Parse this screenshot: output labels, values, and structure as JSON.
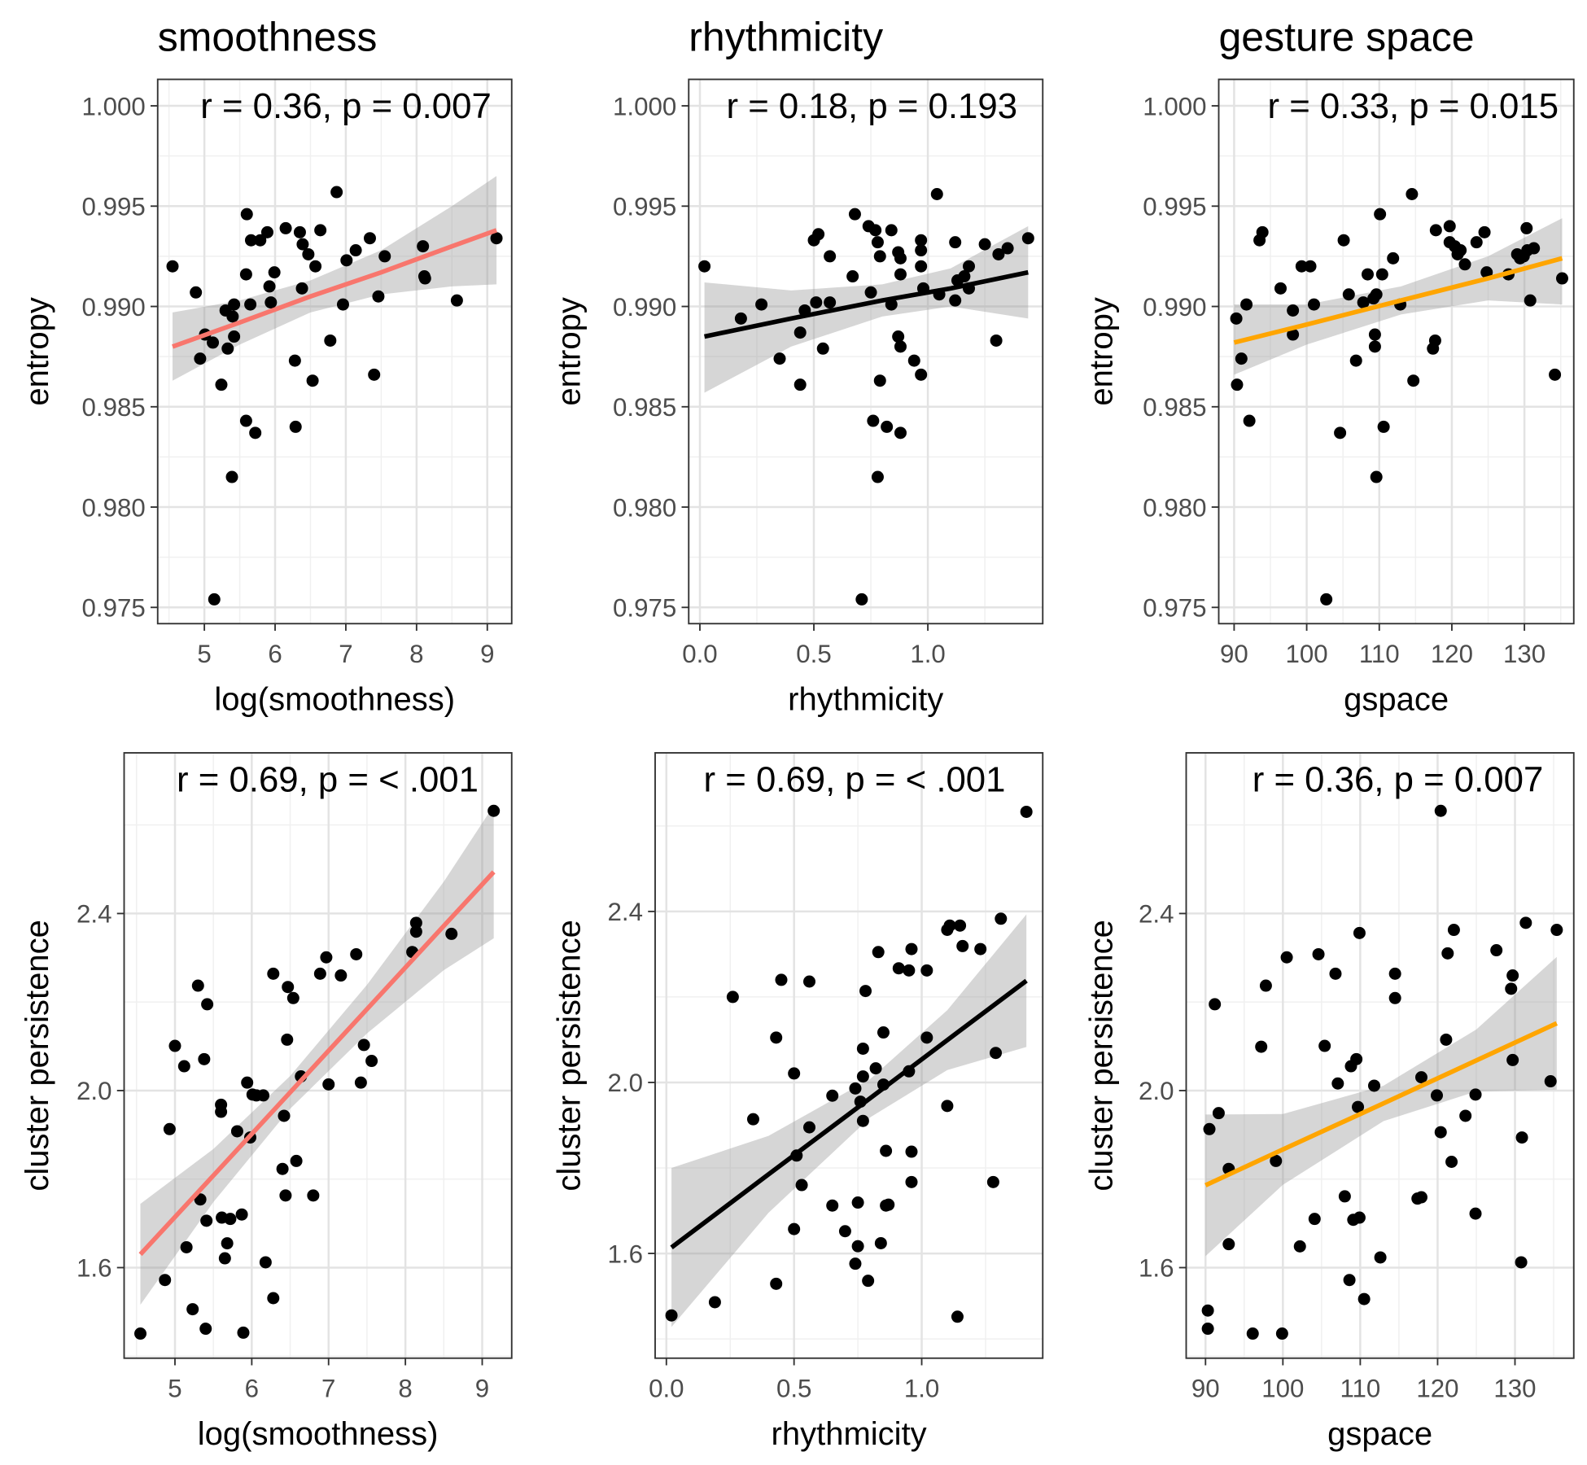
{
  "chart_data": [
    {
      "type": "scatter",
      "title": "smoothness",
      "xlabel": "log(smoothness)",
      "ylabel": "entropy",
      "annotation": "r = 0.36, p = 0.007",
      "grid": true,
      "point_color": "#000000",
      "x": [
        4.55,
        4.88,
        4.94,
        5.01,
        5.12,
        5.14,
        5.24,
        5.3,
        5.33,
        5.4,
        5.42,
        5.39,
        5.42,
        5.59,
        5.59,
        5.6,
        5.65,
        5.66,
        5.72,
        5.79,
        5.89,
        5.92,
        5.94,
        5.99,
        6.15,
        6.28,
        6.29,
        6.35,
        6.38,
        6.39,
        6.47,
        6.53,
        6.57,
        6.64,
        6.78,
        6.87,
        6.96,
        7.01,
        7.14,
        7.34,
        7.4,
        7.46,
        7.55,
        8.09,
        8.11,
        8.12,
        8.57,
        9.13
      ],
      "y": [
        0.992,
        0.9907,
        0.9874,
        0.9886,
        0.9882,
        0.9754,
        0.9861,
        0.9898,
        0.9879,
        0.9895,
        0.9901,
        0.9815,
        0.9885,
        0.9843,
        0.9916,
        0.9946,
        0.9901,
        0.9933,
        0.9837,
        0.9933,
        0.9937,
        0.991,
        0.9902,
        0.9917,
        0.9939,
        0.9873,
        0.984,
        0.9937,
        0.9909,
        0.9931,
        0.9926,
        0.9863,
        0.992,
        0.9938,
        0.9883,
        0.9957,
        0.9901,
        0.9923,
        0.9928,
        0.9934,
        0.9866,
        0.9905,
        0.9925,
        0.993,
        0.9915,
        0.9914,
        0.9903,
        0.9934
      ],
      "fit": {
        "color": "#F8766D",
        "x": [
          4.55,
          5.5,
          6.5,
          7.5,
          8.5,
          9.13
        ],
        "y": [
          0.988,
          0.9892,
          0.9905,
          0.9917,
          0.993,
          0.9938
        ],
        "lower": [
          0.9863,
          0.9881,
          0.9897,
          0.9906,
          0.991,
          0.9911
        ],
        "upper": [
          0.9897,
          0.9903,
          0.9913,
          0.9928,
          0.995,
          0.9965
        ]
      },
      "xlim": [
        4.34,
        9.345
      ],
      "ylim": [
        0.97419,
        1.00132
      ],
      "xticks": [
        5,
        6,
        7,
        8,
        9
      ],
      "yticks": [
        {
          "value": 1,
          "label": "1.000"
        },
        0.995,
        {
          "value": 0.99,
          "label": "0.990"
        },
        0.985,
        {
          "value": 0.98,
          "label": "0.980"
        },
        0.975
      ]
    },
    {
      "type": "scatter",
      "title": "rhythmicity",
      "xlabel": "rhythmicity",
      "ylabel": "entropy",
      "annotation": "r = 0.18, p = 0.193",
      "grid": true,
      "point_color": "#000000",
      "x": [
        0.02,
        0.18,
        0.27,
        0.35,
        0.44,
        0.44,
        0.46,
        0.5,
        0.51,
        0.52,
        0.54,
        0.57,
        0.57,
        0.67,
        0.68,
        0.71,
        0.74,
        0.75,
        0.76,
        0.77,
        0.78,
        0.79,
        0.79,
        0.78,
        0.82,
        0.84,
        0.84,
        0.88,
        0.87,
        0.87,
        0.88,
        0.88,
        0.88,
        0.94,
        0.97,
        0.97,
        0.97,
        0.97,
        0.98,
        1.04,
        1.05,
        1.12,
        1.12,
        1.13,
        1.16,
        1.18,
        1.18,
        1.25,
        1.3,
        1.31,
        1.35,
        1.44
      ],
      "y": [
        0.992,
        0.9894,
        0.9901,
        0.9874,
        0.9887,
        0.9861,
        0.9898,
        0.9933,
        0.9902,
        0.9936,
        0.9879,
        0.9925,
        0.9902,
        0.9915,
        0.9946,
        0.9754,
        0.994,
        0.9907,
        0.9843,
        0.9938,
        0.9932,
        0.9925,
        0.9863,
        0.9815,
        0.984,
        0.9938,
        0.9901,
        0.9916,
        0.9885,
        0.9927,
        0.988,
        0.9837,
        0.9924,
        0.9873,
        0.9866,
        0.992,
        0.9933,
        0.9928,
        0.9909,
        0.9956,
        0.9906,
        0.9903,
        0.9932,
        0.9913,
        0.9915,
        0.992,
        0.9909,
        0.9931,
        0.9883,
        0.9926,
        0.9929,
        0.9934
      ],
      "fit": {
        "color": "#000000",
        "x": [
          0.02,
          0.4,
          0.8,
          1.1,
          1.44
        ],
        "y": [
          0.9885,
          0.9894,
          0.9903,
          0.9909,
          0.9917
        ],
        "lower": [
          0.9857,
          0.988,
          0.9895,
          0.99,
          0.9894
        ],
        "upper": [
          0.9912,
          0.9908,
          0.9911,
          0.9919,
          0.994
        ]
      },
      "xlim": [
        -0.049,
        1.504
      ],
      "ylim": [
        0.97419,
        1.00132
      ],
      "xticks": [
        {
          "value": 0,
          "label": "0.0"
        },
        0.5,
        {
          "value": 1,
          "label": "1.0"
        }
      ],
      "yticks": [
        {
          "value": 1,
          "label": "1.000"
        },
        0.995,
        {
          "value": 0.99,
          "label": "0.990"
        },
        0.985,
        {
          "value": 0.98,
          "label": "0.980"
        },
        0.975
      ]
    },
    {
      "type": "scatter",
      "title": "gesture space",
      "xlabel": "gspace",
      "ylabel": "entropy",
      "annotation": "r = 0.33, p = 0.015",
      "grid": true,
      "point_color": "#000000",
      "x": [
        90.3,
        90.4,
        91.0,
        91.7,
        92.1,
        93.5,
        93.9,
        96.4,
        98.1,
        98.1,
        99.3,
        100.5,
        101.0,
        102.7,
        104.6,
        105.1,
        105.8,
        106.8,
        107.8,
        108.4,
        109.2,
        109.4,
        109.4,
        109.6,
        109.6,
        110.1,
        110.4,
        110.6,
        111.9,
        112.9,
        114.5,
        114.7,
        117.4,
        117.7,
        117.8,
        119.7,
        119.7,
        120.4,
        120.8,
        121.2,
        121.8,
        123.4,
        124.5,
        124.8,
        127.8,
        129.0,
        129.4,
        129.9,
        130.3,
        130.4,
        130.8,
        131.3,
        134.2,
        135.2
      ],
      "y": [
        0.9894,
        0.9861,
        0.9874,
        0.9901,
        0.9843,
        0.9933,
        0.9937,
        0.9909,
        0.9898,
        0.9886,
        0.992,
        0.992,
        0.9901,
        0.9754,
        0.9837,
        0.9933,
        0.9906,
        0.9873,
        0.9902,
        0.9916,
        0.9904,
        0.988,
        0.9886,
        0.9906,
        0.9815,
        0.9946,
        0.9916,
        0.984,
        0.9924,
        0.9901,
        0.9956,
        0.9863,
        0.9879,
        0.9883,
        0.9938,
        0.994,
        0.9932,
        0.993,
        0.9926,
        0.9928,
        0.9921,
        0.9932,
        0.9937,
        0.9917,
        0.9916,
        0.9926,
        0.9924,
        0.9925,
        0.9939,
        0.9928,
        0.9903,
        0.9929,
        0.9866,
        0.9914
      ],
      "fit": {
        "color": "#FFA500",
        "x": [
          90,
          100,
          113,
          125,
          135.2
        ],
        "y": [
          0.9882,
          0.9891,
          0.9903,
          0.9914,
          0.9924
        ],
        "lower": [
          0.9866,
          0.9881,
          0.9896,
          0.9903,
          0.9901
        ],
        "upper": [
          0.9901,
          0.9901,
          0.991,
          0.9925,
          0.9944
        ]
      },
      "xlim": [
        87.88,
        136.8
      ],
      "ylim": [
        0.97419,
        1.00132
      ],
      "xticks": [
        90,
        100,
        110,
        120,
        130
      ],
      "yticks": [
        {
          "value": 1,
          "label": "1.000"
        },
        0.995,
        {
          "value": 0.99,
          "label": "0.990"
        },
        0.985,
        {
          "value": 0.98,
          "label": "0.980"
        },
        0.975
      ]
    },
    {
      "type": "scatter",
      "xlabel": "log(smoothness)",
      "ylabel": "cluster persistence",
      "annotation": "r = 0.69, p = < .001",
      "grid": true,
      "point_color": "#000000",
      "x": [
        4.55,
        4.87,
        4.93,
        5.0,
        5.12,
        5.15,
        5.23,
        5.3,
        5.33,
        5.38,
        5.41,
        5.4,
        5.42,
        5.6,
        5.6,
        5.61,
        5.65,
        5.68,
        5.72,
        5.81,
        5.87,
        5.89,
        5.94,
        5.98,
        6.01,
        6.06,
        6.15,
        6.18,
        6.28,
        6.28,
        6.4,
        6.42,
        6.44,
        6.46,
        6.47,
        6.54,
        6.58,
        6.64,
        6.8,
        6.89,
        6.97,
        7.0,
        7.16,
        7.36,
        7.42,
        7.46,
        7.56,
        8.09,
        8.14,
        8.14,
        8.6,
        9.15
      ],
      "y": [
        1.451,
        1.572,
        1.913,
        2.101,
        2.055,
        1.646,
        1.506,
        2.237,
        1.754,
        2.071,
        1.706,
        1.462,
        2.195,
        1.968,
        1.952,
        1.713,
        1.621,
        1.655,
        1.71,
        1.908,
        1.72,
        1.453,
        2.018,
        1.894,
        1.991,
        1.989,
        1.989,
        1.612,
        2.264,
        1.531,
        1.823,
        1.943,
        1.763,
        2.115,
        2.234,
        2.209,
        1.841,
        2.032,
        1.763,
        2.264,
        2.301,
        2.014,
        2.26,
        2.308,
        2.018,
        2.103,
        2.067,
        2.313,
        2.379,
        2.359,
        2.354,
        2.632
      ],
      "fit": {
        "color": "#F8766D",
        "x": [
          4.55,
          5.5,
          6.5,
          7.5,
          8.5,
          9.15
        ],
        "y": [
          1.63,
          1.808,
          1.996,
          2.184,
          2.372,
          2.494
        ],
        "lower": [
          1.516,
          1.748,
          1.959,
          2.129,
          2.272,
          2.344
        ],
        "upper": [
          1.744,
          1.868,
          2.033,
          2.239,
          2.472,
          2.644
        ]
      },
      "xlim": [
        4.338,
        9.384
      ],
      "ylim": [
        1.3954,
        2.763
      ],
      "xticks": [
        5,
        6,
        7,
        8,
        9
      ],
      "yticks": [
        1.6,
        {
          "value": 2,
          "label": "2.0"
        },
        2.4
      ]
    },
    {
      "type": "scatter",
      "xlabel": "rhythmicity",
      "ylabel": "cluster persistence",
      "annotation": "r = 0.69, p = < .001",
      "grid": true,
      "point_color": "#000000",
      "x": [
        0.02,
        0.19,
        0.26,
        0.34,
        0.43,
        0.43,
        0.45,
        0.5,
        0.5,
        0.51,
        0.53,
        0.56,
        0.56,
        0.65,
        0.65,
        0.7,
        0.74,
        0.74,
        0.75,
        0.75,
        0.76,
        0.77,
        0.77,
        0.77,
        0.78,
        0.79,
        0.82,
        0.83,
        0.84,
        0.85,
        0.85,
        0.86,
        0.86,
        0.87,
        0.91,
        0.95,
        0.95,
        0.96,
        0.96,
        0.96,
        1.02,
        1.02,
        1.1,
        1.1,
        1.11,
        1.14,
        1.15,
        1.16,
        1.23,
        1.28,
        1.29,
        1.31,
        1.41
      ],
      "y": [
        1.455,
        1.486,
        2.2,
        1.914,
        1.529,
        2.105,
        2.24,
        2.021,
        1.657,
        1.829,
        1.76,
        1.895,
        2.236,
        1.969,
        1.712,
        1.652,
        1.986,
        1.576,
        1.719,
        1.617,
        1.955,
        1.91,
        2.079,
        2.014,
        2.214,
        1.536,
        2.033,
        2.305,
        1.624,
        2.117,
        1.995,
        1.84,
        1.712,
        1.714,
        2.267,
        2.262,
        2.026,
        2.312,
        1.767,
        1.838,
        2.262,
        2.105,
        1.945,
        2.357,
        2.367,
        1.452,
        2.367,
        2.319,
        2.312,
        1.767,
        2.069,
        2.383,
        2.633
      ],
      "fit": {
        "color": "#000000",
        "x": [
          0.02,
          0.4,
          0.8,
          1.1,
          1.41
        ],
        "y": [
          1.614,
          1.785,
          1.964,
          2.099,
          2.238
        ],
        "lower": [
          1.428,
          1.695,
          1.919,
          2.029,
          2.083
        ],
        "upper": [
          1.8,
          1.875,
          2.009,
          2.169,
          2.393
        ]
      },
      "xlim": [
        -0.044,
        1.474
      ],
      "ylim": [
        1.355,
        2.771
      ],
      "xticks": [
        {
          "value": 0,
          "label": "0.0"
        },
        0.5,
        {
          "value": 1,
          "label": "1.0"
        }
      ],
      "yticks": [
        1.6,
        {
          "value": 2,
          "label": "2.0"
        },
        2.4
      ]
    },
    {
      "type": "scatter",
      "xlabel": "gspace",
      "ylabel": "cluster persistence",
      "annotation": "r = 0.36, p = 0.007",
      "grid": true,
      "point_color": "#000000",
      "x": [
        90.3,
        90.3,
        90.5,
        91.2,
        91.7,
        93.0,
        93.0,
        96.1,
        97.2,
        97.8,
        99.1,
        99.9,
        100.5,
        102.2,
        104.1,
        104.6,
        105.4,
        106.8,
        107.1,
        108.0,
        108.6,
        108.8,
        109.5,
        109.1,
        109.7,
        109.9,
        109.9,
        110.5,
        111.8,
        112.6,
        114.5,
        114.5,
        117.4,
        117.9,
        117.9,
        119.9,
        120.4,
        120.4,
        121.1,
        121.3,
        121.8,
        122.1,
        123.6,
        124.9,
        124.9,
        127.6,
        129.5,
        129.7,
        129.7,
        130.8,
        130.9,
        131.4,
        134.6,
        135.4
      ],
      "y": [
        1.462,
        1.503,
        1.913,
        2.195,
        1.949,
        1.823,
        1.653,
        1.451,
        2.099,
        2.237,
        1.841,
        1.451,
        2.301,
        1.648,
        1.71,
        2.308,
        2.101,
        2.264,
        2.016,
        1.761,
        1.572,
        2.055,
        2.071,
        1.708,
        1.963,
        1.713,
        2.356,
        1.529,
        2.011,
        1.623,
        2.264,
        2.209,
        1.756,
        2.03,
        1.759,
        1.989,
        2.632,
        1.906,
        2.115,
        2.31,
        1.839,
        2.363,
        1.943,
        1.991,
        1.722,
        2.317,
        2.23,
        2.26,
        2.069,
        1.612,
        1.894,
        2.379,
        2.021,
        2.363
      ],
      "fit": {
        "color": "#FFA500",
        "x": [
          90,
          100,
          113,
          125,
          135.4
        ],
        "y": [
          1.786,
          1.867,
          1.971,
          2.068,
          2.152
        ],
        "lower": [
          1.626,
          1.787,
          1.931,
          1.998,
          2.002
        ],
        "upper": [
          1.946,
          1.947,
          2.011,
          2.138,
          2.302
        ]
      },
      "xlim": [
        87.5,
        137.6
      ],
      "ylim": [
        1.3954,
        2.763
      ],
      "xticks": [
        90,
        100,
        110,
        120,
        130
      ],
      "yticks": [
        1.6,
        {
          "value": 2,
          "label": "2.0"
        },
        2.4
      ]
    }
  ]
}
